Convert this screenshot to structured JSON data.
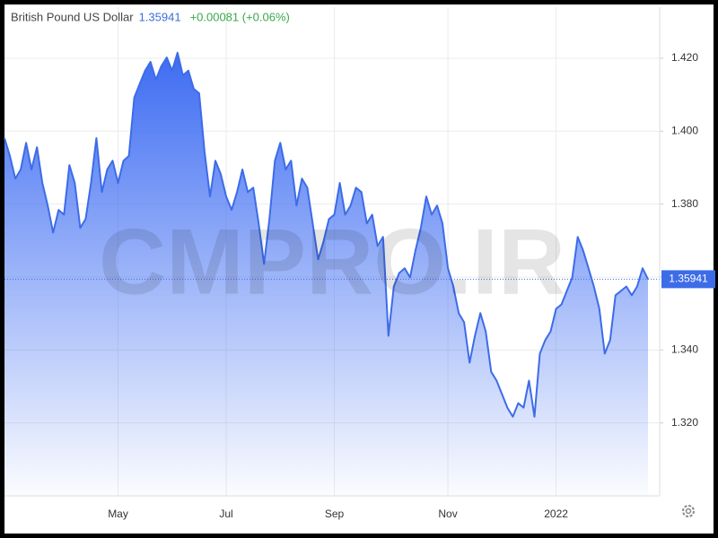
{
  "header": {
    "title": "British Pound US Dollar",
    "price": "1.35941",
    "change": "+0.00081 (+0.06%)"
  },
  "watermark": "CMPRO.IR",
  "chart_data": {
    "type": "area",
    "categories": [
      null,
      null,
      null,
      null,
      null,
      null,
      null,
      null,
      null,
      null,
      null,
      null,
      null,
      null,
      null,
      null,
      null,
      null,
      null,
      null,
      null,
      "May",
      null,
      null,
      null,
      null,
      null,
      null,
      null,
      null,
      null,
      null,
      null,
      null,
      null,
      null,
      null,
      null,
      null,
      null,
      null,
      "Jul",
      null,
      null,
      null,
      null,
      null,
      null,
      null,
      null,
      null,
      null,
      null,
      null,
      null,
      null,
      null,
      null,
      null,
      null,
      null,
      "Sep",
      null,
      null,
      null,
      null,
      null,
      null,
      null,
      null,
      null,
      null,
      null,
      null,
      null,
      null,
      null,
      null,
      null,
      null,
      null,
      null,
      "Nov",
      null,
      null,
      null,
      null,
      null,
      null,
      null,
      null,
      null,
      null,
      null,
      null,
      null,
      null,
      null,
      null,
      null,
      null,
      null,
      "2022",
      null,
      null,
      null,
      null,
      null,
      null,
      null,
      null,
      null,
      null,
      null,
      null,
      null,
      null,
      null,
      null,
      null
    ],
    "series": [
      {
        "name": "British Pound US Dollar",
        "color": "#3d6ce8",
        "values": [
          1.3981,
          1.3932,
          1.387,
          1.3895,
          1.3968,
          1.3895,
          1.3956,
          1.3858,
          1.3796,
          1.3722,
          1.3784,
          1.3771,
          1.3907,
          1.3858,
          1.3735,
          1.3759,
          1.3858,
          1.3981,
          1.3833,
          1.3895,
          1.3919,
          1.3858,
          1.3919,
          1.3932,
          1.4092,
          1.4129,
          1.4166,
          1.419,
          1.4141,
          1.4178,
          1.4202,
          1.4166,
          1.4215,
          1.4153,
          1.4166,
          1.4116,
          1.4104,
          1.3944,
          1.3821,
          1.3919,
          1.3882,
          1.3821,
          1.3784,
          1.3833,
          1.3895,
          1.3833,
          1.3845,
          1.3747,
          1.3636,
          1.3759,
          1.3919,
          1.3968,
          1.3895,
          1.3919,
          1.3796,
          1.387,
          1.3845,
          1.3747,
          1.3648,
          1.3698,
          1.3759,
          1.3771,
          1.3858,
          1.3771,
          1.3796,
          1.3845,
          1.3833,
          1.3747,
          1.3771,
          1.3685,
          1.371,
          1.3439,
          1.3574,
          1.3611,
          1.3624,
          1.3599,
          1.3673,
          1.3735,
          1.3821,
          1.3771,
          1.3796,
          1.3747,
          1.3624,
          1.3574,
          1.3501,
          1.3476,
          1.3365,
          1.3439,
          1.3501,
          1.3451,
          1.334,
          1.3316,
          1.3279,
          1.3242,
          1.3217,
          1.3254,
          1.3242,
          1.3316,
          1.3217,
          1.339,
          1.3427,
          1.3451,
          1.3513,
          1.3525,
          1.3562,
          1.3599,
          1.371,
          1.3673,
          1.3624,
          1.3574,
          1.3513,
          1.339,
          1.3427,
          1.355,
          1.3562,
          1.3574,
          1.355,
          1.3574,
          1.3624,
          1.35941
        ]
      }
    ],
    "ylim": [
      1.3,
      1.434
    ],
    "yticks": [
      {
        "value": 1.32,
        "label": "1.320"
      },
      {
        "value": 1.34,
        "label": "1.340"
      },
      {
        "value": 1.36,
        "label": "1.360"
      },
      {
        "value": 1.38,
        "label": "1.380"
      },
      {
        "value": 1.4,
        "label": "1.400"
      },
      {
        "value": 1.42,
        "label": "1.420"
      }
    ],
    "grid": true
  }
}
